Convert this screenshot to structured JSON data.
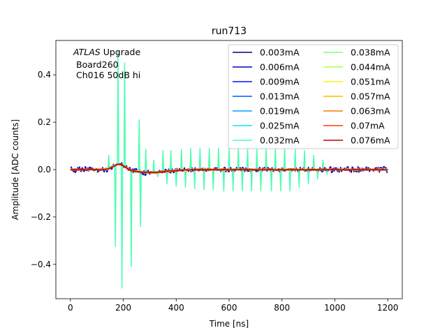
{
  "chart_data": {
    "type": "line",
    "title": "run713",
    "xlabel": "Time [ns]",
    "ylabel": "Amplitude [ADC counts]",
    "xlim": [
      -55,
      1255
    ],
    "ylim": [
      -0.545,
      0.545
    ],
    "xticks": [
      "0",
      "200",
      "400",
      "600",
      "800",
      "1000",
      "1200"
    ],
    "yticks": [
      "−0.4",
      "−0.2",
      "0.0",
      "0.2",
      "0.4"
    ],
    "annotation": {
      "line1_italic": "ATLAS",
      "line1_rest": " Upgrade",
      "line2": "Board260",
      "line3": "Ch016 50dB hi"
    },
    "legend_position": "top-right",
    "grid": false,
    "series": [
      {
        "name": "0.003mA",
        "color": "#00007f",
        "kind": "smooth"
      },
      {
        "name": "0.006mA",
        "color": "#0000c8",
        "kind": "noisy"
      },
      {
        "name": "0.009mA",
        "color": "#0010ff",
        "kind": "smooth"
      },
      {
        "name": "0.013mA",
        "color": "#0058ff",
        "kind": "smooth"
      },
      {
        "name": "0.019mA",
        "color": "#00a4ff",
        "kind": "smooth"
      },
      {
        "name": "0.025mA",
        "color": "#0ae8ec",
        "kind": "smooth"
      },
      {
        "name": "0.032mA",
        "color": "#4affad",
        "kind": "spiky"
      },
      {
        "name": "0.038mA",
        "color": "#7dff7a",
        "kind": "smooth"
      },
      {
        "name": "0.044mA",
        "color": "#b1ff46",
        "kind": "smooth"
      },
      {
        "name": "0.051mA",
        "color": "#f1fc06",
        "kind": "smooth"
      },
      {
        "name": "0.057mA",
        "color": "#ffb900",
        "kind": "smooth"
      },
      {
        "name": "0.063mA",
        "color": "#ff7700",
        "kind": "smooth"
      },
      {
        "name": "0.07mA",
        "color": "#ff3b00",
        "kind": "smooth"
      },
      {
        "name": "0.076mA",
        "color": "#c40000",
        "kind": "smooth"
      }
    ],
    "pulse": {
      "peak_time": 185,
      "peak_amplitude": 0.025,
      "undershoot": -0.012,
      "undershoot_time": 300
    },
    "spikes_032mA": [
      {
        "x": 145,
        "y": 0.06
      },
      {
        "x": 170,
        "y": -0.325
      },
      {
        "x": 180,
        "y": 0.5
      },
      {
        "x": 195,
        "y": -0.5
      },
      {
        "x": 205,
        "y": 0.45
      },
      {
        "x": 230,
        "y": -0.41
      },
      {
        "x": 260,
        "y": 0.21
      },
      {
        "x": 265,
        "y": -0.24
      },
      {
        "x": 285,
        "y": 0.085
      },
      {
        "x": 290,
        "y": -0.02
      },
      {
        "x": 315,
        "y": 0.04
      },
      {
        "x": 330,
        "y": -0.03
      },
      {
        "x": 350,
        "y": 0.08
      },
      {
        "x": 365,
        "y": -0.06
      },
      {
        "x": 380,
        "y": 0.08
      },
      {
        "x": 400,
        "y": -0.07
      },
      {
        "x": 420,
        "y": 0.085
      },
      {
        "x": 435,
        "y": -0.075
      },
      {
        "x": 455,
        "y": 0.09
      },
      {
        "x": 470,
        "y": -0.08
      },
      {
        "x": 490,
        "y": 0.09
      },
      {
        "x": 505,
        "y": -0.085
      },
      {
        "x": 525,
        "y": 0.09
      },
      {
        "x": 540,
        "y": -0.085
      },
      {
        "x": 560,
        "y": 0.09
      },
      {
        "x": 580,
        "y": -0.09
      },
      {
        "x": 600,
        "y": 0.09
      },
      {
        "x": 615,
        "y": -0.09
      },
      {
        "x": 635,
        "y": 0.095
      },
      {
        "x": 650,
        "y": -0.09
      },
      {
        "x": 670,
        "y": 0.09
      },
      {
        "x": 685,
        "y": -0.09
      },
      {
        "x": 705,
        "y": 0.09
      },
      {
        "x": 720,
        "y": -0.09
      },
      {
        "x": 740,
        "y": 0.09
      },
      {
        "x": 760,
        "y": -0.09
      },
      {
        "x": 775,
        "y": 0.09
      },
      {
        "x": 795,
        "y": -0.09
      },
      {
        "x": 810,
        "y": 0.09
      },
      {
        "x": 830,
        "y": -0.09
      },
      {
        "x": 850,
        "y": 0.085
      },
      {
        "x": 865,
        "y": -0.075
      },
      {
        "x": 885,
        "y": 0.08
      },
      {
        "x": 900,
        "y": -0.06
      },
      {
        "x": 920,
        "y": 0.06
      },
      {
        "x": 935,
        "y": -0.04
      },
      {
        "x": 955,
        "y": 0.04
      },
      {
        "x": 970,
        "y": -0.02
      }
    ]
  }
}
